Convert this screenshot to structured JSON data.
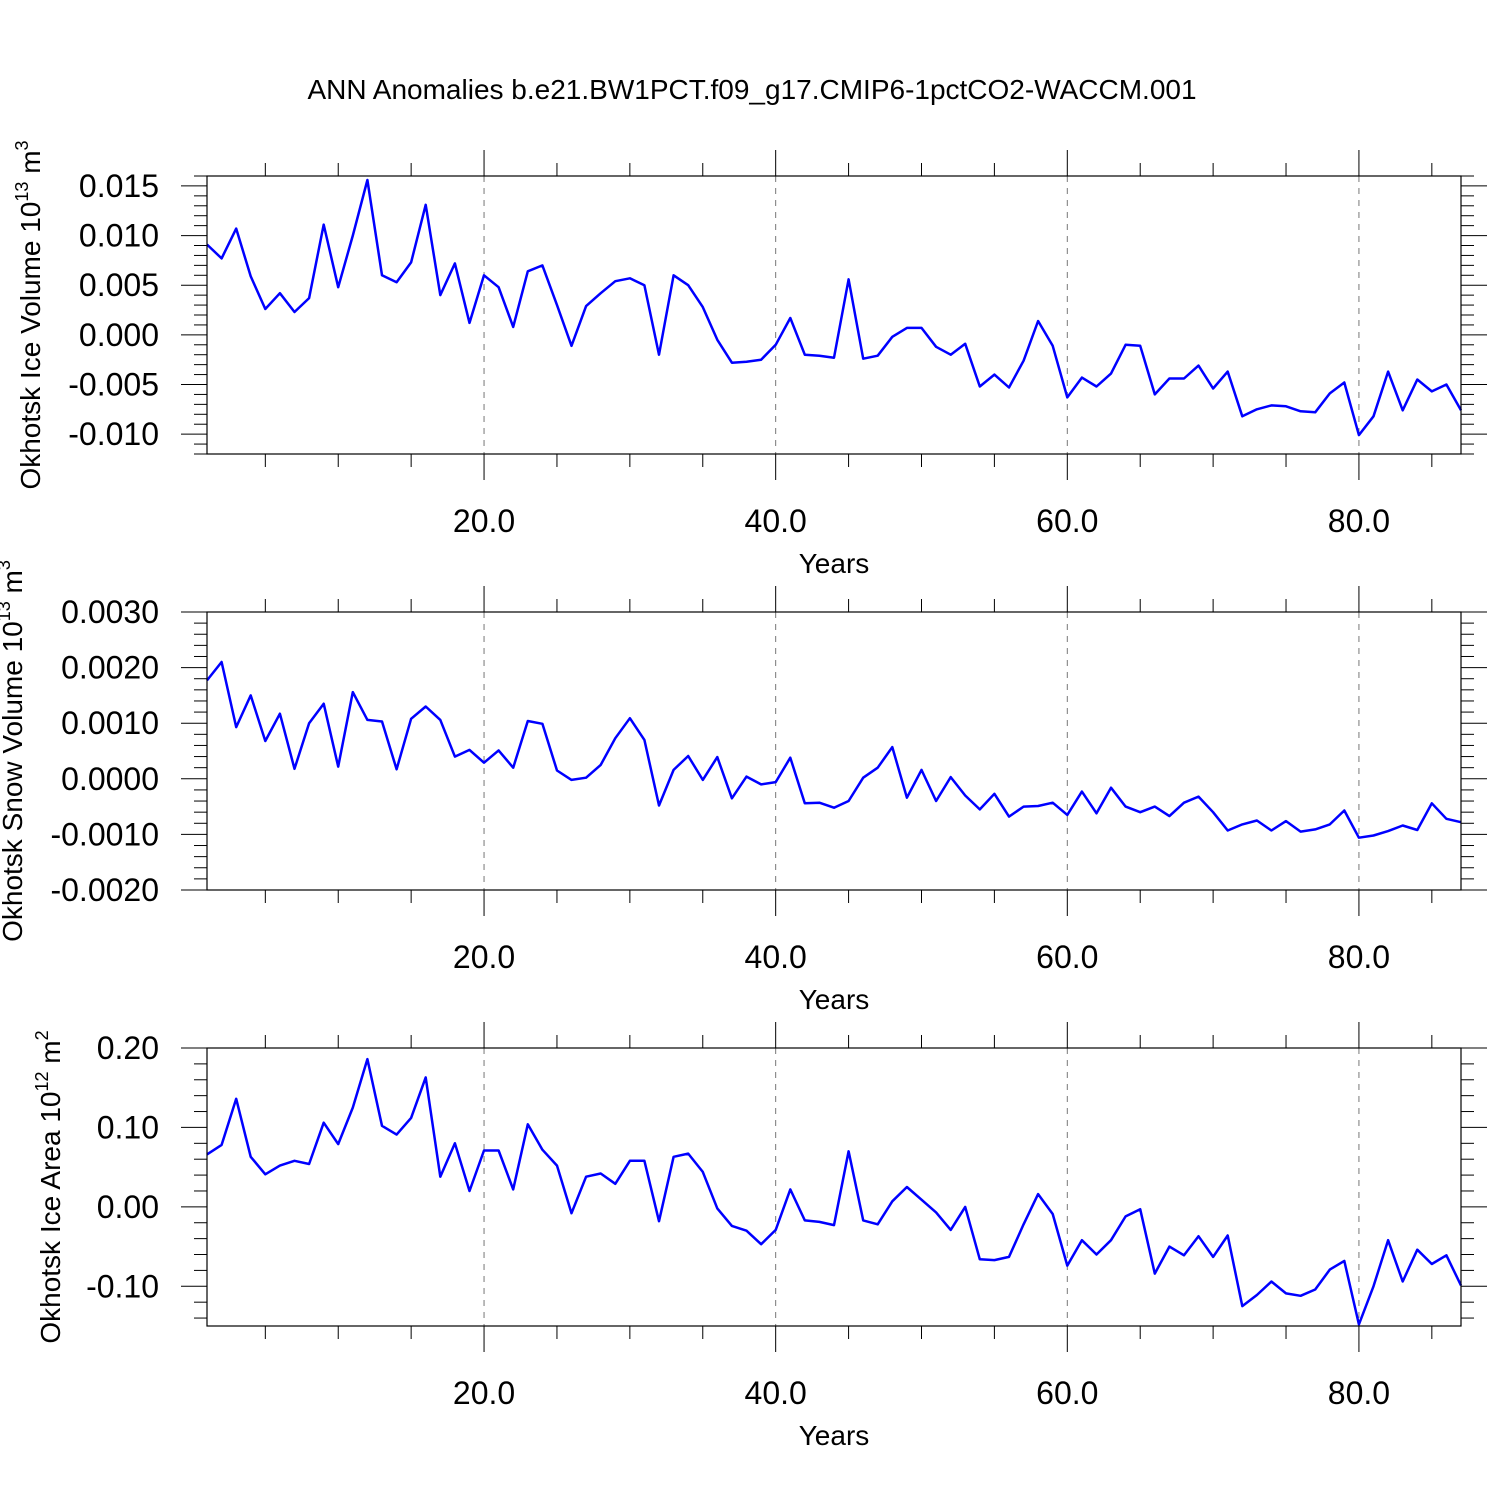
{
  "figure": {
    "title": "ANN Anomalies b.e21.BW1PCT.f09_g17.CMIP6-1pctCO2-WACCM.001",
    "line_color": "#0000ff",
    "grid_color": "#000000"
  },
  "chart_data": [
    {
      "type": "line",
      "ylabel": "Okhotsk Ice Volume 10",
      "ylabel_sup": "13",
      "ylabel_unit": " m",
      "ylabel_unit_sup": "3",
      "xlabel": "Years",
      "xlim": [
        1,
        87
      ],
      "ylim": [
        -0.012,
        0.016
      ],
      "xticks": [
        20,
        40,
        60,
        80
      ],
      "xtick_labels": [
        "20.0",
        "40.0",
        "60.0",
        "80.0"
      ],
      "yticks": [
        0.015,
        0.01,
        0.005,
        0.0,
        -0.005,
        -0.01
      ],
      "ytick_labels": [
        "0.015",
        "0.010",
        "0.005",
        "0.000",
        "-0.005",
        "-0.010"
      ],
      "grid": "vertical-dashed",
      "x": [
        1,
        2,
        3,
        4,
        5,
        6,
        7,
        8,
        9,
        10,
        11,
        12,
        13,
        14,
        15,
        16,
        17,
        18,
        19,
        20,
        21,
        22,
        23,
        24,
        25,
        26,
        27,
        28,
        29,
        30,
        31,
        32,
        33,
        34,
        35,
        36,
        37,
        38,
        39,
        40,
        41,
        42,
        43,
        44,
        45,
        46,
        47,
        48,
        49,
        50,
        51,
        52,
        53,
        54,
        55,
        56,
        57,
        58,
        59,
        60,
        61,
        62,
        63,
        64,
        65,
        66,
        67,
        68,
        69,
        70,
        71,
        72,
        73,
        74,
        75,
        76,
        77,
        78,
        79,
        80,
        81,
        82,
        83,
        84,
        85,
        86,
        87
      ],
      "values": [
        0.0091,
        0.0077,
        0.0107,
        0.0059,
        0.0026,
        0.0042,
        0.0023,
        0.0037,
        0.0111,
        0.0048,
        0.01,
        0.0156,
        0.006,
        0.0053,
        0.0073,
        0.0131,
        0.004,
        0.0072,
        0.0012,
        0.006,
        0.0048,
        0.0008,
        0.0064,
        0.007,
        0.003,
        -0.0011,
        0.0029,
        0.0042,
        0.0054,
        0.0057,
        0.005,
        -0.002,
        0.006,
        0.005,
        0.0028,
        -0.0005,
        -0.0028,
        -0.0027,
        -0.0025,
        -0.001,
        0.0017,
        -0.002,
        -0.0021,
        -0.0023,
        0.0056,
        -0.0024,
        -0.0021,
        -0.0002,
        0.0007,
        0.0007,
        -0.0012,
        -0.002,
        -0.0009,
        -0.0052,
        -0.004,
        -0.0053,
        -0.0026,
        0.0014,
        -0.0011,
        -0.0063,
        -0.0043,
        -0.0052,
        -0.0039,
        -0.001,
        -0.0011,
        -0.006,
        -0.0044,
        -0.0044,
        -0.0031,
        -0.0054,
        -0.0037,
        -0.0082,
        -0.0075,
        -0.0071,
        -0.0072,
        -0.0077,
        -0.0078,
        -0.0059,
        -0.0048,
        -0.0101,
        -0.0082,
        -0.0037,
        -0.0076,
        -0.0045,
        -0.0057,
        -0.005,
        -0.0076
      ]
    },
    {
      "type": "line",
      "ylabel": "Okhotsk Snow Volume 10",
      "ylabel_sup": "13",
      "ylabel_unit": " m",
      "ylabel_unit_sup": "3",
      "xlabel": "Years",
      "xlim": [
        1,
        87
      ],
      "ylim": [
        -0.002,
        0.003
      ],
      "xticks": [
        20,
        40,
        60,
        80
      ],
      "xtick_labels": [
        "20.0",
        "40.0",
        "60.0",
        "80.0"
      ],
      "yticks": [
        0.003,
        0.002,
        0.001,
        0.0,
        -0.001,
        -0.002
      ],
      "ytick_labels": [
        "0.0030",
        "0.0020",
        "0.0010",
        "0.0000",
        "-0.0010",
        "-0.0020"
      ],
      "grid": "vertical-dashed",
      "x": [
        1,
        2,
        3,
        4,
        5,
        6,
        7,
        8,
        9,
        10,
        11,
        12,
        13,
        14,
        15,
        16,
        17,
        18,
        19,
        20,
        21,
        22,
        23,
        24,
        25,
        26,
        27,
        28,
        29,
        30,
        31,
        32,
        33,
        34,
        35,
        36,
        37,
        38,
        39,
        40,
        41,
        42,
        43,
        44,
        45,
        46,
        47,
        48,
        49,
        50,
        51,
        52,
        53,
        54,
        55,
        56,
        57,
        58,
        59,
        60,
        61,
        62,
        63,
        64,
        65,
        66,
        67,
        68,
        69,
        70,
        71,
        72,
        73,
        74,
        75,
        76,
        77,
        78,
        79,
        80,
        81,
        82,
        83,
        84,
        85,
        86,
        87
      ],
      "values": [
        0.00177,
        0.0021,
        0.00093,
        0.0015,
        0.00068,
        0.00117,
        0.00018,
        0.001,
        0.00135,
        0.00022,
        0.00156,
        0.00106,
        0.00103,
        0.00017,
        0.00108,
        0.0013,
        0.00106,
        0.0004,
        0.00052,
        0.00029,
        0.00051,
        0.0002,
        0.00104,
        0.00099,
        0.00015,
        -2e-05,
        2e-05,
        0.00025,
        0.00073,
        0.00109,
        0.0007,
        -0.00048,
        0.00016,
        0.00041,
        -2e-05,
        0.00039,
        -0.00035,
        4e-05,
        -0.0001,
        -6e-05,
        0.00038,
        -0.00044,
        -0.00043,
        -0.00052,
        -0.0004,
        2e-05,
        0.0002,
        0.00057,
        -0.00034,
        0.00016,
        -0.0004,
        3e-05,
        -0.0003,
        -0.00055,
        -0.00027,
        -0.00068,
        -0.0005,
        -0.00049,
        -0.00043,
        -0.00065,
        -0.00023,
        -0.00062,
        -0.00016,
        -0.0005,
        -0.0006,
        -0.0005,
        -0.00067,
        -0.00043,
        -0.00032,
        -0.0006,
        -0.00093,
        -0.00082,
        -0.00075,
        -0.00093,
        -0.00076,
        -0.00095,
        -0.00091,
        -0.00082,
        -0.00057,
        -0.00106,
        -0.00102,
        -0.00094,
        -0.00084,
        -0.00092,
        -0.00044,
        -0.00072,
        -0.00078
      ]
    },
    {
      "type": "line",
      "ylabel": "Okhotsk Ice Area 10",
      "ylabel_sup": "12",
      "ylabel_unit": " m",
      "ylabel_unit_sup": "2",
      "xlabel": "Years",
      "xlim": [
        1,
        87
      ],
      "ylim": [
        -0.15,
        0.2
      ],
      "xticks": [
        20,
        40,
        60,
        80
      ],
      "xtick_labels": [
        "20.0",
        "40.0",
        "60.0",
        "80.0"
      ],
      "yticks": [
        0.2,
        0.1,
        0.0,
        -0.1
      ],
      "ytick_labels": [
        "0.20",
        "0.10",
        "0.00",
        "-0.10"
      ],
      "grid": "vertical-dashed",
      "x": [
        1,
        2,
        3,
        4,
        5,
        6,
        7,
        8,
        9,
        10,
        11,
        12,
        13,
        14,
        15,
        16,
        17,
        18,
        19,
        20,
        21,
        22,
        23,
        24,
        25,
        26,
        27,
        28,
        29,
        30,
        31,
        32,
        33,
        34,
        35,
        36,
        37,
        38,
        39,
        40,
        41,
        42,
        43,
        44,
        45,
        46,
        47,
        48,
        49,
        50,
        51,
        52,
        53,
        54,
        55,
        56,
        57,
        58,
        59,
        60,
        61,
        62,
        63,
        64,
        65,
        66,
        67,
        68,
        69,
        70,
        71,
        72,
        73,
        74,
        75,
        76,
        77,
        78,
        79,
        80,
        81,
        82,
        83,
        84,
        85,
        86,
        87
      ],
      "values": [
        0.066,
        0.078,
        0.136,
        0.063,
        0.041,
        0.052,
        0.058,
        0.054,
        0.106,
        0.079,
        0.125,
        0.186,
        0.102,
        0.091,
        0.112,
        0.163,
        0.038,
        0.08,
        0.02,
        0.071,
        0.071,
        0.022,
        0.104,
        0.072,
        0.052,
        -0.008,
        0.038,
        0.042,
        0.029,
        0.058,
        0.058,
        -0.018,
        0.063,
        0.067,
        0.044,
        -0.002,
        -0.024,
        -0.03,
        -0.047,
        -0.029,
        0.022,
        -0.017,
        -0.019,
        -0.023,
        0.07,
        -0.017,
        -0.022,
        0.007,
        0.025,
        0.009,
        -0.007,
        -0.029,
        0.0,
        -0.066,
        -0.067,
        -0.063,
        -0.022,
        0.016,
        -0.009,
        -0.074,
        -0.042,
        -0.06,
        -0.042,
        -0.012,
        -0.003,
        -0.084,
        -0.05,
        -0.061,
        -0.037,
        -0.063,
        -0.036,
        -0.125,
        -0.111,
        -0.094,
        -0.109,
        -0.112,
        -0.104,
        -0.079,
        -0.068,
        -0.148,
        -0.1,
        -0.042,
        -0.094,
        -0.054,
        -0.072,
        -0.061,
        -0.099
      ]
    }
  ]
}
